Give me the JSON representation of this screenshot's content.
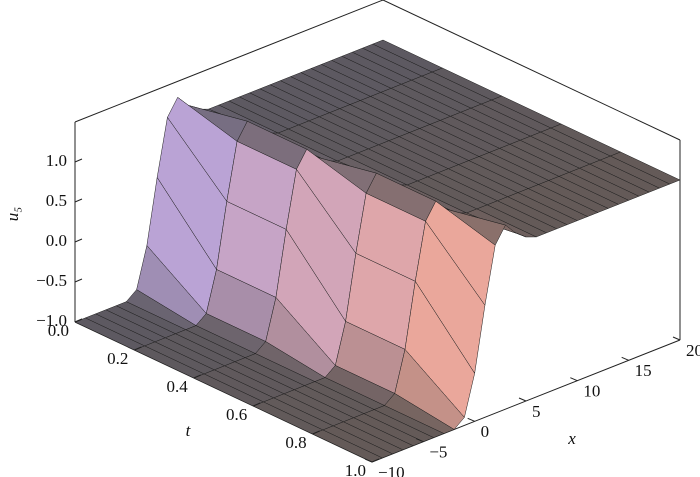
{
  "chart_data": {
    "type": "surface",
    "zlabel": "u₅",
    "tlabel": "t",
    "xlabel": "x",
    "tlim": [
      0,
      1
    ],
    "tticks": [
      {
        "value": 0,
        "label": "0.0"
      },
      0.2,
      0.4,
      0.6,
      0.8,
      {
        "value": 1,
        "label": "1.0"
      }
    ],
    "xlim": [
      -10,
      20
    ],
    "xticks": [
      {
        "value": -10,
        "label": "−10"
      },
      {
        "value": -5,
        "label": "−5"
      },
      0,
      5,
      10,
      15,
      20
    ],
    "zlim": [
      -1,
      1.5
    ],
    "zticks": [
      {
        "value": -1,
        "label": "−1.0"
      },
      {
        "value": -0.5,
        "label": "−0.5"
      },
      {
        "value": 0,
        "label": "0.0"
      },
      {
        "value": 0.5,
        "label": "0.5"
      },
      {
        "value": 1,
        "label": "1.0"
      }
    ],
    "colors": {
      "flat": "#4c4c4c",
      "face_near_t0": "#b4a2dc",
      "face_near_t1": "#f0a894",
      "mesh": "#1e1e1e"
    },
    "t": [
      0,
      0.2,
      0.4,
      0.6,
      0.8,
      1
    ],
    "x": [
      -10,
      -9,
      -8,
      -7,
      -6,
      -5,
      -4,
      -3,
      -2,
      -1,
      0,
      1,
      2,
      3,
      4,
      5,
      6,
      7,
      8,
      9,
      10,
      11,
      12,
      13,
      14,
      15,
      16,
      17,
      18,
      19,
      20
    ],
    "z": [
      [
        -1,
        -1,
        -1,
        -1,
        -1,
        -1,
        -0.9,
        -0.4,
        0.4,
        1.1,
        1.3,
        1.15,
        1.05,
        1,
        1,
        1,
        1,
        1,
        1,
        1,
        1,
        1,
        1,
        1,
        1,
        1,
        1,
        1,
        1,
        1,
        1
      ],
      [
        -1,
        -1,
        -1,
        -1,
        -1,
        -1,
        -1,
        -0.9,
        -0.4,
        0.4,
        1.1,
        1.3,
        1.15,
        1.05,
        1,
        1,
        1,
        1,
        1,
        1,
        1,
        1,
        1,
        1,
        1,
        1,
        1,
        1,
        1,
        1,
        1
      ],
      [
        -1,
        -1,
        -1,
        -1,
        -1,
        -1,
        -1,
        -0.9,
        -0.4,
        0.4,
        1.1,
        1.3,
        1.15,
        1.05,
        1,
        1,
        1,
        1,
        1,
        1,
        1,
        1,
        1,
        1,
        1,
        1,
        1,
        1,
        1,
        1,
        1
      ],
      [
        -1,
        -1,
        -1,
        -1,
        -1,
        -1,
        -1,
        -1,
        -0.9,
        -0.4,
        0.4,
        1.1,
        1.3,
        1.15,
        1.05,
        1,
        1,
        1,
        1,
        1,
        1,
        1,
        1,
        1,
        1,
        1,
        1,
        1,
        1,
        1,
        1
      ],
      [
        -1,
        -1,
        -1,
        -1,
        -1,
        -1,
        -1,
        -1,
        -0.9,
        -0.4,
        0.4,
        1.1,
        1.3,
        1.15,
        1.05,
        1,
        1,
        1,
        1,
        1,
        1,
        1,
        1,
        1,
        1,
        1,
        1,
        1,
        1,
        1,
        1
      ],
      [
        -1,
        -1,
        -1,
        -1,
        -1,
        -1,
        -1,
        -1,
        -1,
        -0.9,
        -0.4,
        0.4,
        1.1,
        1.3,
        1.15,
        1.05,
        1,
        1,
        1,
        1,
        1,
        1,
        1,
        1,
        1,
        1,
        1,
        1,
        1,
        1,
        1
      ]
    ]
  }
}
